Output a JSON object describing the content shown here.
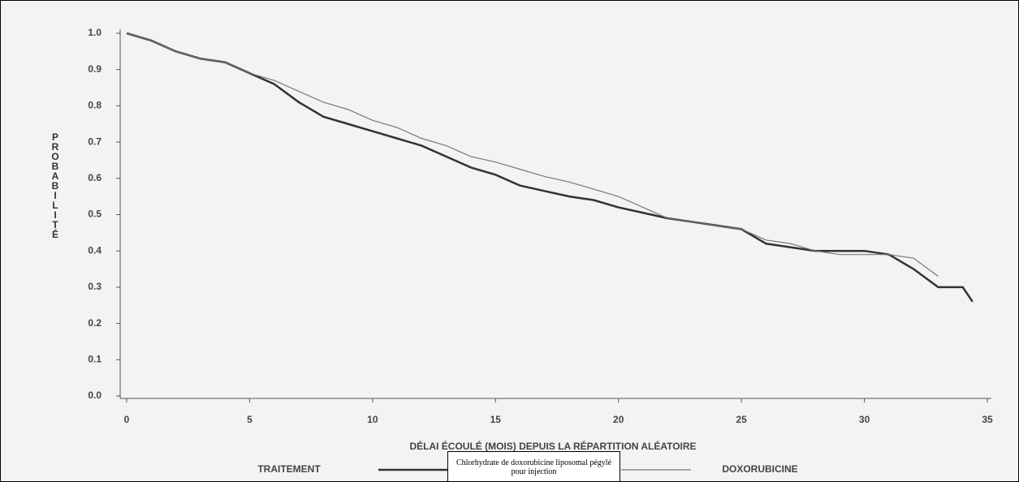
{
  "chart_data": {
    "type": "line",
    "xlabel": "DÉLAI ÉCOULÉ (MOIS) DEPUIS LA RÉPARTITION ALÉATOIRE",
    "ylabel": "PROBABILITÉ",
    "legend_title": "TRAITEMENT",
    "x": [
      0,
      1,
      2,
      3,
      4,
      5,
      6,
      7,
      8,
      9,
      10,
      11,
      12,
      13,
      14,
      15,
      16,
      17,
      18,
      19,
      20,
      21,
      22,
      23,
      24,
      25,
      26,
      27,
      28,
      29,
      30,
      31,
      32,
      33,
      34,
      34.4
    ],
    "series": [
      {
        "name": "Chlorhydrate de doxorubicine liposomal pégylé pour injection",
        "color": "#333333",
        "width": 2.5,
        "values": [
          1.0,
          0.98,
          0.95,
          0.93,
          0.92,
          0.89,
          0.86,
          0.81,
          0.77,
          0.75,
          0.73,
          0.71,
          0.69,
          0.66,
          0.63,
          0.61,
          0.58,
          0.565,
          0.55,
          0.54,
          0.52,
          0.505,
          0.49,
          0.48,
          0.47,
          0.46,
          0.42,
          0.41,
          0.4,
          0.4,
          0.4,
          0.39,
          0.35,
          0.3,
          0.3,
          0.26
        ]
      },
      {
        "name": "DOXORUBICINE",
        "color": "#777777",
        "width": 1.2,
        "values": [
          1.0,
          0.98,
          0.95,
          0.93,
          0.92,
          0.89,
          0.87,
          0.84,
          0.81,
          0.79,
          0.76,
          0.74,
          0.71,
          0.69,
          0.66,
          0.645,
          0.625,
          0.605,
          0.59,
          0.57,
          0.55,
          0.52,
          0.49,
          0.48,
          0.47,
          0.46,
          0.43,
          0.42,
          0.4,
          0.39,
          0.39,
          0.39,
          0.38,
          0.33,
          null,
          null
        ]
      }
    ],
    "xlim": [
      0,
      35
    ],
    "xticks": [
      0,
      5,
      10,
      15,
      20,
      25,
      30,
      35
    ],
    "ylim": [
      0,
      1
    ],
    "yticks": [
      {
        "value": 0,
        "label": "0.0"
      },
      0.1,
      0.2,
      0.3,
      0.4,
      0.5,
      0.6,
      0.7,
      0.8,
      0.9,
      {
        "value": 1,
        "label": "1.0"
      }
    ]
  }
}
